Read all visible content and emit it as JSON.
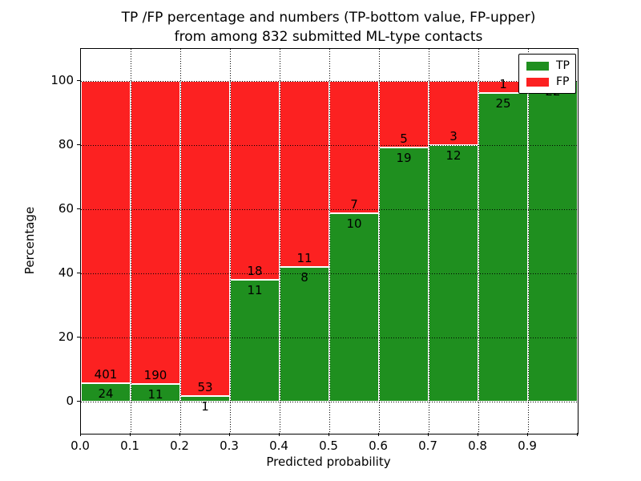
{
  "title": {
    "line1": "TP /FP percentage and numbers (TP-bottom value, FP-upper)",
    "line2": "from among 832 submitted ML-type contacts"
  },
  "axes": {
    "xlabel": "Predicted probability",
    "ylabel": "Percentage",
    "x_tick_labels": [
      "0.0",
      "0.1",
      "0.2",
      "0.3",
      "0.4",
      "0.5",
      "0.6",
      "0.7",
      "0.8",
      "0.9"
    ],
    "y_tick_labels": [
      "0",
      "20",
      "40",
      "60",
      "80",
      "100"
    ],
    "y_tick_values": [
      0,
      20,
      40,
      60,
      80,
      100
    ],
    "xlim": [
      0.0,
      1.0
    ],
    "ylim": [
      -10,
      110
    ],
    "grid": "dotted black, x every 0.1, y every 20, drawn over bars"
  },
  "legend": {
    "position": "upper-right",
    "items": [
      {
        "label": "TP",
        "color": "#1f8f1f"
      },
      {
        "label": "FP",
        "color": "#fc2121"
      }
    ]
  },
  "colors": {
    "tp_green": "#1f8f1f",
    "fp_red": "#fc2121",
    "bar_edge": "#ffffff",
    "grid": "#000000",
    "background": "#ffffff"
  },
  "chart_data": {
    "type": "bar",
    "stacked": true,
    "normalized": "each bin scaled to 100%",
    "title": "TP /FP percentage and numbers (TP-bottom value, FP-upper)\nfrom among 832 submitted ML-type contacts",
    "xlabel": "Predicted probability",
    "ylabel": "Percentage",
    "xlim": [
      0.0,
      1.0
    ],
    "ylim": [
      -10,
      110
    ],
    "bin_width": 0.1,
    "total_contacts": 832,
    "series_order_bottom_to_top": [
      "TP",
      "FP"
    ],
    "bins": [
      {
        "x_start": 0.0,
        "x_end": 0.1,
        "tp": 24,
        "fp": 401,
        "tp_pct": 5.6
      },
      {
        "x_start": 0.1,
        "x_end": 0.2,
        "tp": 11,
        "fp": 190,
        "tp_pct": 5.5
      },
      {
        "x_start": 0.2,
        "x_end": 0.3,
        "tp": 1,
        "fp": 53,
        "tp_pct": 1.9
      },
      {
        "x_start": 0.3,
        "x_end": 0.4,
        "tp": 11,
        "fp": 18,
        "tp_pct": 37.9
      },
      {
        "x_start": 0.4,
        "x_end": 0.5,
        "tp": 8,
        "fp": 11,
        "tp_pct": 42.1
      },
      {
        "x_start": 0.5,
        "x_end": 0.6,
        "tp": 10,
        "fp": 7,
        "tp_pct": 58.8
      },
      {
        "x_start": 0.6,
        "x_end": 0.7,
        "tp": 19,
        "fp": 5,
        "tp_pct": 79.2
      },
      {
        "x_start": 0.7,
        "x_end": 0.8,
        "tp": 12,
        "fp": 3,
        "tp_pct": 80.0
      },
      {
        "x_start": 0.8,
        "x_end": 0.9,
        "tp": 25,
        "fp": 1,
        "tp_pct": 96.2
      },
      {
        "x_start": 0.9,
        "x_end": 1.0,
        "tp": 22,
        "fp": 0,
        "tp_pct": 100.0
      }
    ]
  }
}
